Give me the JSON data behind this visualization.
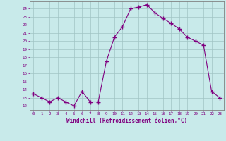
{
  "x": [
    0,
    1,
    2,
    3,
    4,
    5,
    6,
    7,
    8,
    9,
    10,
    11,
    12,
    13,
    14,
    15,
    16,
    17,
    18,
    19,
    20,
    21,
    22,
    23
  ],
  "y": [
    13.5,
    13.0,
    12.5,
    13.0,
    12.5,
    12.0,
    13.8,
    12.5,
    12.5,
    17.5,
    20.5,
    21.8,
    24.0,
    24.2,
    24.5,
    23.5,
    22.8,
    22.2,
    21.5,
    20.5,
    20.0,
    19.5,
    13.8,
    13.0
  ],
  "line_color": "#800080",
  "marker": "+",
  "marker_size": 4,
  "bg_color": "#c8eaea",
  "grid_color": "#a0c4c4",
  "xlabel": "Windchill (Refroidissement éolien,°C)",
  "xlabel_color": "#800080",
  "ytick_min": 12,
  "ytick_max": 24,
  "xlim": [
    -0.5,
    23.5
  ],
  "ylim": [
    11.5,
    24.9
  ],
  "tick_color": "#800080",
  "spine_color": "#808080",
  "title_color": "#800080"
}
